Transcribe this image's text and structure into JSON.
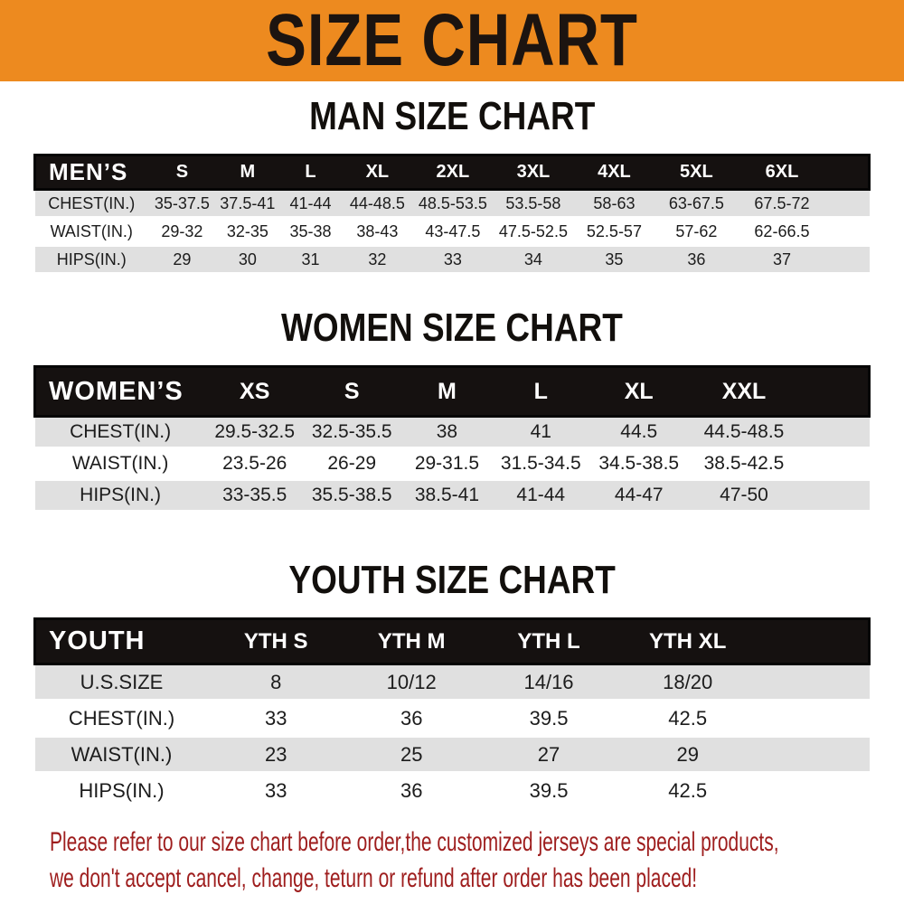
{
  "banner": {
    "title": "SIZE CHART"
  },
  "sections": [
    {
      "title": "MAN SIZE CHART"
    },
    {
      "title": "WOMEN SIZE CHART"
    },
    {
      "title": "YOUTH SIZE CHART"
    }
  ],
  "tables": {
    "men": {
      "label": "MEN’S",
      "sizes": [
        "S",
        "M",
        "L",
        "XL",
        "2XL",
        "3XL",
        "4XL",
        "5XL",
        "6XL"
      ],
      "rows": [
        {
          "label": "CHEST(IN.)",
          "values": [
            "35-37.5",
            "37.5-41",
            "41-44",
            "44-48.5",
            "48.5-53.5",
            "53.5-58",
            "58-63",
            "63-67.5",
            "67.5-72"
          ]
        },
        {
          "label": "WAIST(IN.)",
          "values": [
            "29-32",
            "32-35",
            "35-38",
            "38-43",
            "43-47.5",
            "47.5-52.5",
            "52.5-57",
            "57-62",
            "62-66.5"
          ]
        },
        {
          "label": "HIPS(IN.)",
          "values": [
            "29",
            "30",
            "31",
            "32",
            "33",
            "34",
            "35",
            "36",
            "37"
          ]
        }
      ]
    },
    "women": {
      "label": "WOMEN’S",
      "sizes": [
        "XS",
        "S",
        "M",
        "L",
        "XL",
        "XXL"
      ],
      "rows": [
        {
          "label": "CHEST(IN.)",
          "values": [
            "29.5-32.5",
            "32.5-35.5",
            "38",
            "41",
            "44.5",
            "44.5-48.5"
          ]
        },
        {
          "label": "WAIST(IN.)",
          "values": [
            "23.5-26",
            "26-29",
            "29-31.5",
            "31.5-34.5",
            "34.5-38.5",
            "38.5-42.5"
          ]
        },
        {
          "label": "HIPS(IN.)",
          "values": [
            "33-35.5",
            "35.5-38.5",
            "38.5-41",
            "41-44",
            "44-47",
            "47-50"
          ]
        }
      ]
    },
    "youth": {
      "label": "YOUTH",
      "sizes": [
        "YTH S",
        "YTH M",
        "YTH L",
        "YTH XL"
      ],
      "rows": [
        {
          "label": "U.S.SIZE",
          "values": [
            "8",
            "10/12",
            "14/16",
            "18/20"
          ]
        },
        {
          "label": "CHEST(IN.)",
          "values": [
            "33",
            "36",
            "39.5",
            "42.5"
          ]
        },
        {
          "label": "WAIST(IN.)",
          "values": [
            "23",
            "25",
            "27",
            "29"
          ]
        },
        {
          "label": "HIPS(IN.)",
          "values": [
            "33",
            "36",
            "39.5",
            "42.5"
          ]
        }
      ]
    }
  },
  "disclaimer": {
    "line1": "Please refer to our size chart before order,the customized jerseys are special products,",
    "line2": "we don't accept cancel, change, teturn or refund after order has been placed!"
  },
  "colors": {
    "banner_bg": "#ed8a1f",
    "header_bar_bg": "#151110",
    "header_text": "#ffffff",
    "row_stripe": "#e0e0e0",
    "body_text": "#1c1c1c",
    "disclaimer_text": "#9e1d1d"
  }
}
